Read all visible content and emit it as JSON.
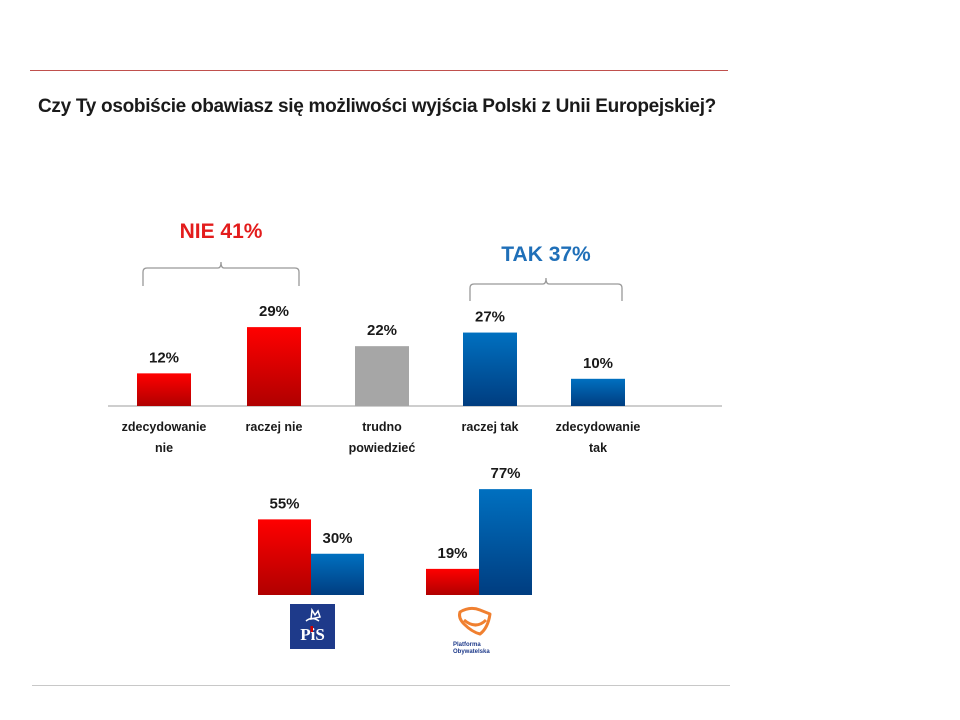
{
  "title": "Czy Ty osobiście obawiasz się możliwości wyjścia Polski z Unii Europejskiej?",
  "colors": {
    "red": "#ff0000",
    "red_dark": "#b00000",
    "blue": "#0070c0",
    "blue_dark": "#003d80",
    "gray": "#a6a6a6",
    "nie_label": "#e31c1c",
    "tak_label": "#1f6fb8",
    "bracket": "#999999"
  },
  "chart_data": [
    {
      "type": "bar",
      "title": "Czy Ty osobiście obawiasz się możliwości wyjścia Polski z Unii Europejskiej?",
      "categories": [
        [
          "zdecydowanie",
          "nie"
        ],
        [
          "raczej nie"
        ],
        [
          "trudno",
          "powiedzieć"
        ],
        [
          "raczej tak"
        ],
        [
          "zdecydowanie",
          "tak"
        ]
      ],
      "values": [
        12,
        29,
        22,
        27,
        10
      ],
      "value_labels": [
        "12%",
        "29%",
        "22%",
        "27%",
        "10%"
      ],
      "bar_colors": [
        "red",
        "red",
        "gray",
        "blue",
        "blue"
      ],
      "ylim": [
        0,
        30
      ],
      "grid": false,
      "annotations": [
        {
          "text": "NIE 41%",
          "color": "nie_label",
          "spans": [
            0,
            1
          ]
        },
        {
          "text": "TAK 37%",
          "color": "tak_label",
          "spans": [
            3,
            4
          ]
        }
      ]
    },
    {
      "type": "bar",
      "title": "",
      "categories": [
        "PiS",
        "Platforma Obywatelska"
      ],
      "series": [
        {
          "name": "NIE",
          "color": "red",
          "values": [
            55,
            19
          ],
          "value_labels": [
            "55%",
            "19%"
          ]
        },
        {
          "name": "TAK",
          "color": "blue",
          "values": [
            30,
            77
          ],
          "value_labels": [
            "30%",
            "77%"
          ]
        }
      ],
      "ylim": [
        0,
        80
      ],
      "grid": false
    }
  ],
  "logos": {
    "pis": {
      "text": "PiS",
      "icon": "crown-eagle"
    },
    "po": {
      "text": [
        "Platforma",
        "Obywatelska"
      ],
      "icon": "orange-smile-shield"
    }
  }
}
